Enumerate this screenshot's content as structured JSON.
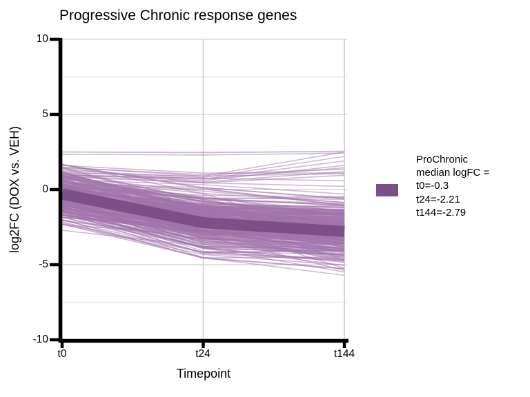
{
  "title": "Progressive Chronic response genes",
  "legend": {
    "lines": [
      "ProChronic",
      "median logFC =",
      "t0=-0.3",
      "t24=-2.21",
      "t144=-2.79"
    ],
    "swatch_color": "#7B4F87"
  },
  "chart_data": {
    "type": "line",
    "title": "Progressive Chronic response genes",
    "xlabel": "Timepoint",
    "ylabel": "log2FC (DOX vs. VEH)",
    "x_categories": [
      "t0",
      "t24",
      "t144"
    ],
    "ylim": [
      -10,
      10
    ],
    "y_major_ticks": [
      10,
      5,
      0,
      -5,
      -10
    ],
    "y_tick_display": [
      "10",
      "5",
      "0",
      "-5",
      "-10"
    ],
    "y_minor_ticks": [
      7.5,
      2.5,
      -2.5,
      -7.5
    ],
    "grid": true,
    "legend_position": "right",
    "series": [
      {
        "name": "ProChronic median logFC",
        "role": "median",
        "x": [
          "t0",
          "t24",
          "t144"
        ],
        "values": [
          -0.3,
          -2.21,
          -2.79
        ],
        "color": "#7B4F87",
        "stroke_width": 16
      }
    ],
    "spaghetti": {
      "description": "individual gene log2FC trajectories (semi-transparent purple lines)",
      "count": 280,
      "color": "#A273AC",
      "opacity": 0.5,
      "stroke_width": 1.6,
      "t0": {
        "mean": -0.5,
        "sd": 0.85,
        "min": -2.85,
        "max": 1.68
      },
      "drop_t24": {
        "mean": 1.7,
        "sd": 0.65,
        "min": 0.25,
        "max": 3.1
      },
      "drop_t144": {
        "mean": 0.55,
        "sd": 0.45,
        "min": -0.15,
        "max": 1.8
      },
      "t24_floor": -4.5,
      "diver_fraction": 0.18,
      "diver_extra_max": 2.6,
      "floor": -7.0,
      "risers": [
        [
          1.5,
          0.9,
          2.5
        ],
        [
          1.3,
          0.8,
          2.2
        ],
        [
          1.2,
          0.7,
          1.9
        ],
        [
          1.0,
          0.6,
          1.6
        ],
        [
          1.45,
          1.0,
          1.35
        ],
        [
          0.9,
          0.5,
          1.2
        ],
        [
          1.6,
          1.1,
          1.1
        ],
        [
          0.85,
          0.45,
          0.95
        ],
        [
          1.1,
          0.9,
          1.05
        ],
        [
          0.95,
          0.7,
          1.45
        ]
      ],
      "flat": [
        [
          2.5,
          2.45,
          2.55
        ],
        [
          2.35,
          2.3,
          2.42
        ]
      ]
    },
    "style": {
      "axis_color": "#000000",
      "major_grid_color": "#D7D7D7",
      "minor_grid_color": "#E8E8E8",
      "vertical_grid_color": "#CDCDCD",
      "background": "#FFFFFF"
    }
  }
}
